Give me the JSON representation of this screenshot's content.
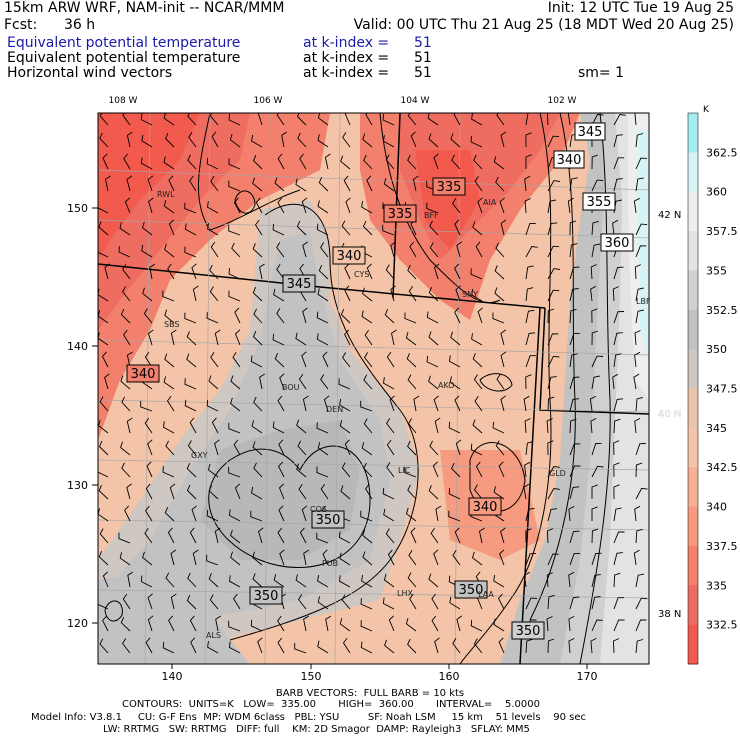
{
  "header": {
    "model": "15km ARW WRF, NAM-init -- NCAR/MMM",
    "init": "Init: 12 UTC Tue 19 Aug 25",
    "fcst_label": "Fcst:",
    "fcst_value": "36 h",
    "valid": "Valid: 00 UTC Thu 21 Aug 25 (18 MDT Wed 20 Aug 25)",
    "fields": [
      {
        "name": "Equivalent potential temperature",
        "level": "at k-index =",
        "value": "51",
        "color": "#1a1aa8"
      },
      {
        "name": "Equivalent potential temperature",
        "level": "at k-index =",
        "value": "51",
        "color": "#000000"
      },
      {
        "name": "Horizontal wind vectors",
        "level": "at k-index =",
        "value": "51",
        "color": "#000000"
      }
    ],
    "smoothing": "sm= 1"
  },
  "map": {
    "lon_labels": [
      "108 W",
      "106 W",
      "104 W",
      "102 W"
    ],
    "lat_labels_right": [
      "42 N",
      "40 N",
      "38 N"
    ],
    "y_ticks": [
      "150",
      "140",
      "130",
      "120"
    ],
    "x_ticks": [
      "140",
      "150",
      "160",
      "170"
    ],
    "stations": [
      "RWL",
      "BFF",
      "AIA",
      "CYS",
      "SNY",
      "SBS",
      "BOU",
      "AKO",
      "LBF",
      "DEN",
      "GXY",
      "GLD",
      "LIC",
      "COS",
      "PUB",
      "LHX",
      "ALS",
      "LAA"
    ],
    "contour_labels": [
      "345",
      "340",
      "335",
      "335",
      "355",
      "360",
      "340",
      "345",
      "340",
      "350",
      "340",
      "350",
      "350",
      "350"
    ]
  },
  "colorbar": {
    "unit": "K",
    "levels": [
      "362.5",
      "360",
      "357.5",
      "355",
      "352.5",
      "350",
      "347.5",
      "345",
      "342.5",
      "340",
      "337.5",
      "335",
      "332.5"
    ],
    "colors": [
      "#a6ecf3",
      "#d8f3f6",
      "#eeeeee",
      "#e3e3e3",
      "#d0d0d0",
      "#c2c2c2",
      "#cfc7c2",
      "#ebc4ac",
      "#f3c4a8",
      "#f6b095",
      "#f69a80",
      "#f2806c",
      "#ee6d60",
      "#f25a4e"
    ]
  },
  "footer": {
    "barb": "BARB VECTORS:  FULL BARB = 10 kts",
    "contours": "CONTOURS:  UNITS=K   LOW=  335.00       HIGH=  360.00       INTERVAL=    5.0000",
    "model_info": "Model Info: V3.8.1     CU: G-F Ens  MP: WDM 6class   PBL: YSU         SF: Noah LSM     15 km    51 levels    90 sec",
    "model_info2": "LW: RRTMG   SW: RRTMG   DIFF: full    KM: 2D Smagor  DAMP: Rayleigh3   SFLAY: MM5"
  }
}
